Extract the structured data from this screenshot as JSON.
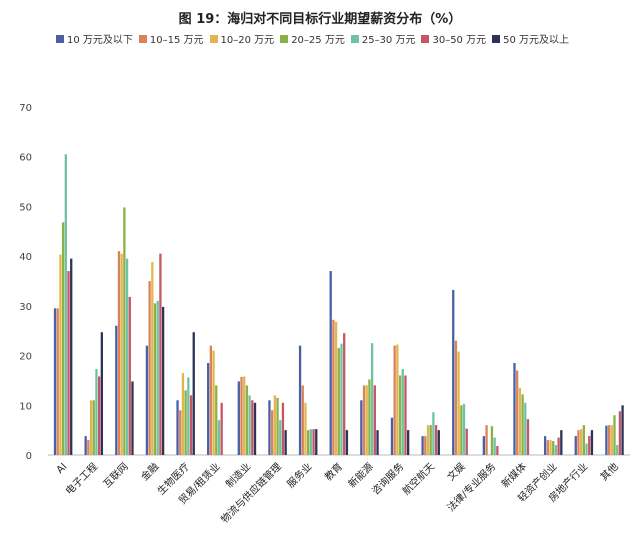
{
  "chart_data": {
    "type": "bar",
    "title": "图 19：海归对不同目标行业期望薪资分布（%）",
    "ylim": [
      0,
      70
    ],
    "yticks": [
      0,
      10,
      20,
      30,
      40,
      50,
      60,
      70
    ],
    "grid": false,
    "legend_position": "top",
    "categories": [
      "AI",
      "电子工程",
      "互联网",
      "金融",
      "生物医疗",
      "贸易/租赁业",
      "制造业",
      "物流与供应链管理",
      "服务业",
      "教育",
      "新能源",
      "咨询服务",
      "航空航天",
      "文娱",
      "法律/专业服务",
      "新媒体",
      "轻资产创业",
      "房地产行业",
      "其他"
    ],
    "series": [
      {
        "name": "10 万元及以下",
        "color": "#4a5fa5",
        "values": [
          29.5,
          3.8,
          26,
          22,
          11,
          18.5,
          14.8,
          11,
          22,
          37,
          11,
          7.5,
          3.8,
          33.2,
          3.8,
          18.5,
          3.8,
          3.8,
          5.9
        ]
      },
      {
        "name": "10–15 万元",
        "color": "#d9835a",
        "values": [
          29.5,
          3.0,
          41,
          35,
          9,
          22,
          15.7,
          9,
          14,
          27.2,
          14,
          22,
          3.8,
          23,
          6,
          17,
          3,
          5,
          6
        ]
      },
      {
        "name": "10–20 万元",
        "color": "#e1b64f",
        "values": [
          40.3,
          11,
          40.5,
          38.8,
          16.5,
          21,
          15.8,
          12,
          10.5,
          26.8,
          14,
          22.2,
          6,
          20.8,
          0,
          13.5,
          3,
          5.2,
          6
        ]
      },
      {
        "name": "20–25 万元",
        "color": "#8ab04a",
        "values": [
          46.8,
          11,
          49.8,
          30.5,
          13,
          14,
          14,
          11.5,
          5,
          21.5,
          15.2,
          16,
          6,
          10,
          5.8,
          12.2,
          2.8,
          6,
          8
        ]
      },
      {
        "name": "25–30 万元",
        "color": "#6fc2a2",
        "values": [
          60.5,
          17.3,
          39.5,
          31,
          15.6,
          7,
          12,
          7,
          5.2,
          22.4,
          22.5,
          17.3,
          8.6,
          10.3,
          3.5,
          10.5,
          2,
          2.3,
          2
        ]
      },
      {
        "name": "30–50 万元",
        "color": "#c65565",
        "values": [
          37,
          15.8,
          31.8,
          40.5,
          12,
          10.5,
          11,
          10.5,
          5.2,
          24.5,
          14,
          16,
          6,
          5.3,
          1.8,
          7.2,
          3.5,
          3.8,
          8.8
        ]
      },
      {
        "name": "50 万元及以上",
        "color": "#2c3258",
        "values": [
          39.5,
          24.7,
          14.8,
          29.8,
          24.7,
          0,
          10.5,
          5,
          5.2,
          5,
          5,
          5,
          5,
          0,
          0,
          0,
          5,
          5,
          10
        ]
      }
    ]
  }
}
